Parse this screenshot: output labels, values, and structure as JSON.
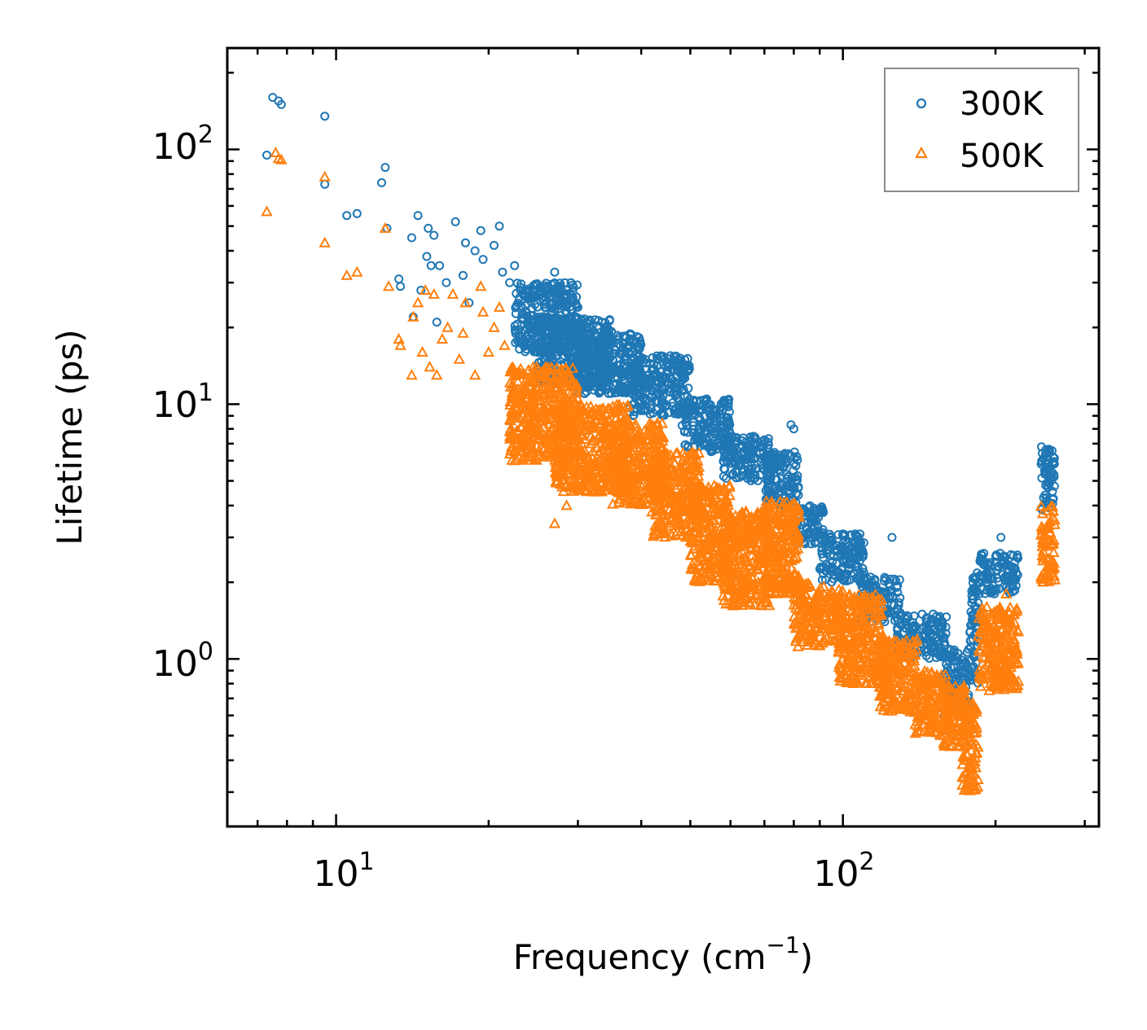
{
  "chart_data": {
    "type": "scatter",
    "xscale": "log",
    "yscale": "log",
    "xlabel": "Frequency (cm",
    "xlabel_sup": "−1",
    "xlabel_close": ")",
    "ylabel": "Lifetime (ps)",
    "xlim": [
      6.1,
      320
    ],
    "ylim": [
      0.22,
      250
    ],
    "x_tick_labels": [
      {
        "base": "10",
        "exp": "1",
        "value": 10
      },
      {
        "base": "10",
        "exp": "2",
        "value": 100
      }
    ],
    "y_tick_labels": [
      {
        "base": "10",
        "exp": "0",
        "value": 1
      },
      {
        "base": "10",
        "exp": "1",
        "value": 10
      },
      {
        "base": "10",
        "exp": "2",
        "value": 100
      }
    ],
    "legend": {
      "location": "top-right"
    },
    "series": [
      {
        "name": "300K",
        "marker": "circle",
        "color": "#1f77b4",
        "points": [
          [
            7.3,
            95
          ],
          [
            7.5,
            160
          ],
          [
            7.7,
            155
          ],
          [
            7.8,
            150
          ],
          [
            9.5,
            135
          ],
          [
            9.5,
            73
          ],
          [
            10.5,
            55
          ],
          [
            11.0,
            56
          ],
          [
            12.3,
            74
          ],
          [
            12.5,
            85
          ],
          [
            12.6,
            49
          ],
          [
            13.3,
            31
          ],
          [
            13.4,
            29
          ],
          [
            14.1,
            45
          ],
          [
            14.2,
            22
          ],
          [
            14.5,
            55
          ],
          [
            14.7,
            28
          ],
          [
            15.1,
            38
          ],
          [
            15.2,
            49
          ],
          [
            15.4,
            35
          ],
          [
            15.6,
            46
          ],
          [
            15.8,
            21
          ],
          [
            16.0,
            35
          ],
          [
            16.5,
            30
          ],
          [
            17.2,
            52
          ],
          [
            17.8,
            32
          ],
          [
            18.0,
            43
          ],
          [
            18.3,
            25
          ],
          [
            18.8,
            40
          ],
          [
            19.3,
            48
          ],
          [
            19.5,
            37
          ],
          [
            20.5,
            42
          ],
          [
            21.0,
            50
          ],
          [
            21.3,
            33
          ],
          [
            22.0,
            30
          ],
          [
            22.5,
            35
          ],
          [
            23.5,
            27
          ],
          [
            24.5,
            28
          ],
          [
            25.5,
            26
          ],
          [
            26.5,
            25
          ],
          [
            27.0,
            33
          ],
          [
            28.5,
            28
          ],
          [
            30.0,
            24
          ],
          [
            79.0,
            8.3
          ],
          [
            80.0,
            8.0
          ],
          [
            125.0,
            3.0
          ],
          [
            205.0,
            3.0
          ],
          [
            175.0,
            0.55
          ]
        ],
        "bands": [
          {
            "x0": 22.5,
            "x1": 30,
            "y_lo": 16,
            "y_hi": 30
          },
          {
            "x0": 25,
            "x1": 35,
            "y_lo": 12,
            "y_hi": 22
          },
          {
            "x0": 30,
            "x1": 40,
            "y_lo": 11,
            "y_hi": 19
          },
          {
            "x0": 38,
            "x1": 50,
            "y_lo": 9,
            "y_hi": 15.5
          },
          {
            "x0": 48,
            "x1": 60,
            "y_lo": 6.5,
            "y_hi": 10.5
          },
          {
            "x0": 58,
            "x1": 72,
            "y_lo": 5,
            "y_hi": 7.5
          },
          {
            "x0": 70,
            "x1": 82,
            "y_lo": 4,
            "y_hi": 6.5
          },
          {
            "x0": 80,
            "x1": 92,
            "y_lo": 2.8,
            "y_hi": 4
          },
          {
            "x0": 90,
            "x1": 110,
            "y_lo": 2.0,
            "y_hi": 3.1
          },
          {
            "x0": 108,
            "x1": 130,
            "y_lo": 1.4,
            "y_hi": 2.1
          },
          {
            "x0": 128,
            "x1": 160,
            "y_lo": 1.0,
            "y_hi": 1.5
          },
          {
            "x0": 158,
            "x1": 178,
            "y_lo": 0.6,
            "y_hi": 1.1
          },
          {
            "x0": 178,
            "x1": 185,
            "y_lo": 0.8,
            "y_hi": 2.2
          },
          {
            "x0": 185,
            "x1": 222,
            "y_lo": 1.8,
            "y_hi": 2.6
          },
          {
            "x0": 246,
            "x1": 262,
            "y_lo": 3.8,
            "y_hi": 6.8
          }
        ]
      },
      {
        "name": "500K",
        "marker": "triangle",
        "color": "#ff7f0e",
        "points": [
          [
            7.3,
            57
          ],
          [
            7.6,
            97
          ],
          [
            7.7,
            92
          ],
          [
            7.8,
            91
          ],
          [
            9.5,
            78
          ],
          [
            9.5,
            43
          ],
          [
            10.5,
            32
          ],
          [
            11.0,
            33
          ],
          [
            12.5,
            49
          ],
          [
            12.7,
            29
          ],
          [
            13.3,
            18
          ],
          [
            13.4,
            17
          ],
          [
            14.1,
            13
          ],
          [
            14.2,
            22
          ],
          [
            14.5,
            25
          ],
          [
            14.8,
            16
          ],
          [
            15.0,
            28
          ],
          [
            15.3,
            14
          ],
          [
            15.6,
            27
          ],
          [
            15.8,
            13
          ],
          [
            16.2,
            18
          ],
          [
            16.6,
            20
          ],
          [
            17.0,
            27
          ],
          [
            17.5,
            15
          ],
          [
            17.8,
            19
          ],
          [
            18.0,
            25
          ],
          [
            18.8,
            13
          ],
          [
            19.3,
            29
          ],
          [
            19.5,
            23
          ],
          [
            20.0,
            16
          ],
          [
            20.5,
            20
          ],
          [
            21.0,
            24
          ],
          [
            21.5,
            17
          ],
          [
            22.3,
            12
          ],
          [
            27.0,
            3.4
          ],
          [
            28.5,
            4.0
          ],
          [
            210.0,
            1.8
          ]
        ],
        "bands": [
          {
            "x0": 22,
            "x1": 30,
            "y_lo": 6,
            "y_hi": 14
          },
          {
            "x0": 27,
            "x1": 38,
            "y_lo": 4.5,
            "y_hi": 10
          },
          {
            "x0": 35,
            "x1": 45,
            "y_lo": 4,
            "y_hi": 8.5
          },
          {
            "x0": 42,
            "x1": 52,
            "y_lo": 3,
            "y_hi": 6.5
          },
          {
            "x0": 50,
            "x1": 60,
            "y_lo": 2.0,
            "y_hi": 4.8
          },
          {
            "x0": 58,
            "x1": 72,
            "y_lo": 1.6,
            "y_hi": 3.8
          },
          {
            "x0": 70,
            "x1": 82,
            "y_lo": 1.8,
            "y_hi": 4.2
          },
          {
            "x0": 80,
            "x1": 100,
            "y_lo": 1.1,
            "y_hi": 2.0
          },
          {
            "x0": 98,
            "x1": 120,
            "y_lo": 0.8,
            "y_hi": 1.8
          },
          {
            "x0": 118,
            "x1": 140,
            "y_lo": 0.62,
            "y_hi": 1.2
          },
          {
            "x0": 138,
            "x1": 160,
            "y_lo": 0.5,
            "y_hi": 0.9
          },
          {
            "x0": 158,
            "x1": 175,
            "y_lo": 0.45,
            "y_hi": 0.8
          },
          {
            "x0": 172,
            "x1": 185,
            "y_lo": 0.3,
            "y_hi": 0.7
          },
          {
            "x0": 185,
            "x1": 222,
            "y_lo": 0.75,
            "y_hi": 1.6
          },
          {
            "x0": 246,
            "x1": 262,
            "y_lo": 2.0,
            "y_hi": 4.0
          }
        ]
      }
    ]
  }
}
